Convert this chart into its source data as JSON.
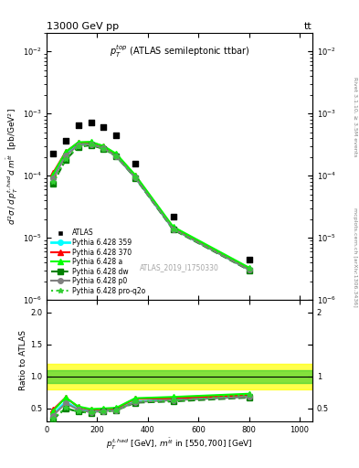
{
  "title_left": "13000 GeV pp",
  "title_right": "tt",
  "right_label": "Rivet 3.1.10, ≥ 3.5M events",
  "right_label2": "mcplots.cern.ch [arXiv:1306.3436]",
  "inner_title": "$p_T^{top}$ (ATLAS semileptonic ttbar)",
  "watermark": "ATLAS_2019_I1750330",
  "xlabel": "$p_T^{t,had}$ [GeV], $m^{\\bar{t}t}$ in [550,700] [GeV]",
  "ylabel_main": "$d^2\\sigma\\,/\\,d\\,p_T^{t,had}\\,d\\,m^{\\bar{t}t}$  [pb/GeV$^2$]",
  "ylabel_ratio": "Ratio to ATLAS",
  "atlas_x": [
    25,
    75,
    125,
    175,
    225,
    275,
    350,
    500,
    800
  ],
  "atlas_y": [
    0.00023,
    0.00036,
    0.00065,
    0.00072,
    0.0006,
    0.00044,
    0.000155,
    2.2e-05,
    4.5e-06
  ],
  "mc_x": [
    25,
    75,
    125,
    175,
    225,
    275,
    350,
    500,
    800
  ],
  "py359_y": [
    9.5e-05,
    0.00022,
    0.00032,
    0.00033,
    0.00028,
    0.00021,
    9.5e-05,
    1.4e-05,
    3.1e-06
  ],
  "py370_y": [
    0.00011,
    0.00024,
    0.00034,
    0.000345,
    0.000295,
    0.00022,
    0.0001,
    1.45e-05,
    3.2e-06
  ],
  "pya_y": [
    0.000105,
    0.00024,
    0.000345,
    0.00035,
    0.0003,
    0.000225,
    0.000102,
    1.5e-05,
    3.3e-06
  ],
  "pydw_y": [
    7.5e-05,
    0.00018,
    0.00029,
    0.00031,
    0.00027,
    0.000205,
    9.2e-05,
    1.35e-05,
    3e-06
  ],
  "pyp0_y": [
    9e-05,
    0.00021,
    0.00031,
    0.00032,
    0.000275,
    0.000205,
    9.3e-05,
    1.38e-05,
    3.05e-06
  ],
  "pyproq2o_y": [
    7.8e-05,
    0.000185,
    0.000295,
    0.000315,
    0.000272,
    0.000208,
    9.4e-05,
    1.37e-05,
    3.2e-06
  ],
  "ratio_x": [
    25,
    75,
    125,
    175,
    225,
    275,
    350,
    500,
    800
  ],
  "ratio_py359": [
    0.41,
    0.61,
    0.49,
    0.46,
    0.47,
    0.48,
    0.61,
    0.64,
    0.69
  ],
  "ratio_py370": [
    0.48,
    0.67,
    0.52,
    0.48,
    0.49,
    0.5,
    0.65,
    0.66,
    0.71
  ],
  "ratio_pya": [
    0.46,
    0.67,
    0.53,
    0.49,
    0.5,
    0.51,
    0.66,
    0.68,
    0.73
  ],
  "ratio_pydw": [
    0.33,
    0.5,
    0.45,
    0.43,
    0.45,
    0.47,
    0.59,
    0.61,
    0.67
  ],
  "ratio_pyp0": [
    0.39,
    0.58,
    0.48,
    0.44,
    0.46,
    0.47,
    0.6,
    0.63,
    0.68
  ],
  "ratio_pyproq2o": [
    0.34,
    0.51,
    0.45,
    0.44,
    0.45,
    0.47,
    0.61,
    0.62,
    0.71
  ],
  "band_green_low": 0.9,
  "band_green_high": 1.1,
  "band_yellow_low": 0.8,
  "band_yellow_high": 1.2,
  "ylim_main": [
    1e-06,
    0.02
  ],
  "ylim_ratio": [
    0.3,
    2.2
  ],
  "xlim": [
    0,
    1050
  ]
}
